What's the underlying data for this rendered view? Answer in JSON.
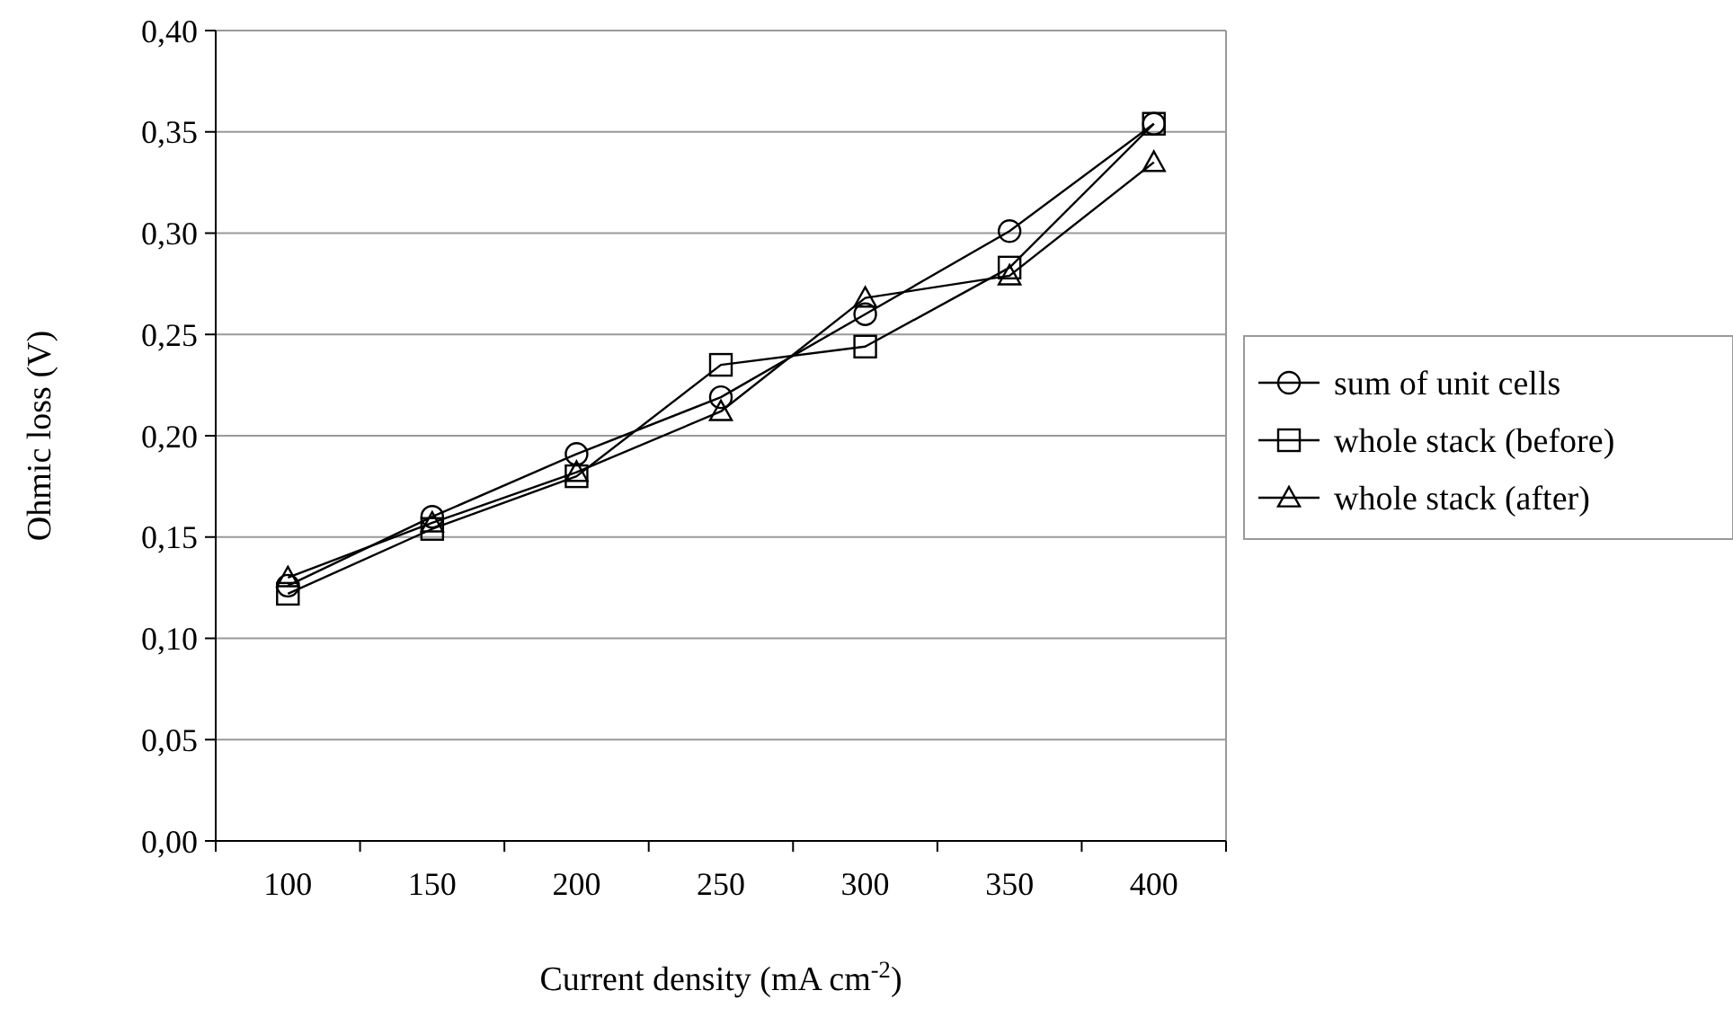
{
  "chart_data": {
    "type": "line",
    "xlabel": "Current density (mA cm$^{-2}$)",
    "ylabel": "Ohmic loss (V)",
    "categories": [
      "100",
      "150",
      "200",
      "250",
      "300",
      "350",
      "400"
    ],
    "series": [
      {
        "name": "sum of unit cells",
        "color": "#000000",
        "marker": "circle",
        "values": [
          0.126,
          0.16,
          0.191,
          0.219,
          0.26,
          0.301,
          0.354
        ]
      },
      {
        "name": "whole stack (before)",
        "color": "#000000",
        "marker": "square",
        "values": [
          0.122,
          0.154,
          0.18,
          0.235,
          0.244,
          0.283,
          0.354
        ]
      },
      {
        "name": "whole stack (after)",
        "color": "#000000",
        "marker": "triangle",
        "values": [
          0.13,
          0.157,
          0.182,
          0.212,
          0.268,
          0.279,
          0.335
        ]
      }
    ],
    "ylim": [
      0,
      0.4
    ],
    "yticks": [
      {
        "value": 0,
        "label": "0,00"
      },
      {
        "value": 0.05,
        "label": "0,05"
      },
      {
        "value": 0.1,
        "label": "0,10"
      },
      {
        "value": 0.15,
        "label": "0,15"
      },
      {
        "value": 0.2,
        "label": "0,20"
      },
      {
        "value": 0.25,
        "label": "0,25"
      },
      {
        "value": 0.3,
        "label": "0,30"
      },
      {
        "value": 0.35,
        "label": "0,35"
      },
      {
        "value": 0.4,
        "label": "0,40"
      }
    ],
    "grid": "y",
    "legend": "right",
    "line_style": "solid"
  }
}
